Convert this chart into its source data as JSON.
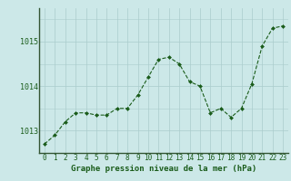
{
  "x": [
    0,
    1,
    2,
    3,
    4,
    5,
    6,
    7,
    8,
    9,
    10,
    11,
    12,
    13,
    14,
    15,
    16,
    17,
    18,
    19,
    20,
    21,
    22,
    23
  ],
  "y": [
    1012.7,
    1012.9,
    1013.2,
    1013.4,
    1013.4,
    1013.35,
    1013.35,
    1013.5,
    1013.5,
    1013.8,
    1014.2,
    1014.6,
    1014.65,
    1014.5,
    1014.1,
    1014.0,
    1013.4,
    1013.5,
    1013.3,
    1013.5,
    1014.05,
    1014.9,
    1015.3,
    1015.35
  ],
  "line_color": "#1a5c1a",
  "marker": "D",
  "marker_size": 2.0,
  "bg_color": "#cce8e8",
  "grid_color": "#aacccc",
  "xlabel": "Graphe pression niveau de la mer (hPa)",
  "xlabel_color": "#1a5c1a",
  "xlabel_fontsize": 6.5,
  "tick_color": "#1a5c1a",
  "tick_fontsize": 5.5,
  "ytick_fontsize": 6.0,
  "ylim": [
    1012.5,
    1015.75
  ],
  "yticks": [
    1013,
    1014,
    1015
  ],
  "xlim": [
    -0.5,
    23.5
  ]
}
